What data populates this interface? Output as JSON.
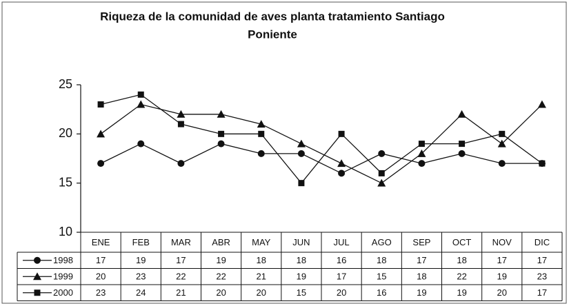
{
  "chart_data": {
    "type": "line",
    "title": [
      "Riqueza de  la comunidad de aves planta tratamiento Santiago",
      "Poniente"
    ],
    "categories": [
      "ENE",
      "FEB",
      "MAR",
      "ABR",
      "MAY",
      "JUN",
      "JUL",
      "AGO",
      "SEP",
      "OCT",
      "NOV",
      "DIC"
    ],
    "series": [
      {
        "name": "1998",
        "color": "#111111",
        "marker": "circle",
        "values": [
          17,
          19,
          17,
          19,
          18,
          18,
          16,
          18,
          17,
          18,
          17,
          17
        ]
      },
      {
        "name": "1999",
        "color": "#111111",
        "marker": "triangle",
        "values": [
          20,
          23,
          22,
          22,
          21,
          19,
          17,
          15,
          18,
          22,
          19,
          23
        ]
      },
      {
        "name": "2000",
        "color": "#111111",
        "marker": "square",
        "values": [
          23,
          24,
          21,
          20,
          20,
          15,
          20,
          16,
          19,
          19,
          20,
          17
        ]
      }
    ],
    "ylim": [
      10,
      25
    ],
    "yticks": [
      10,
      15,
      20,
      25
    ],
    "grid": false,
    "data_table": true
  }
}
